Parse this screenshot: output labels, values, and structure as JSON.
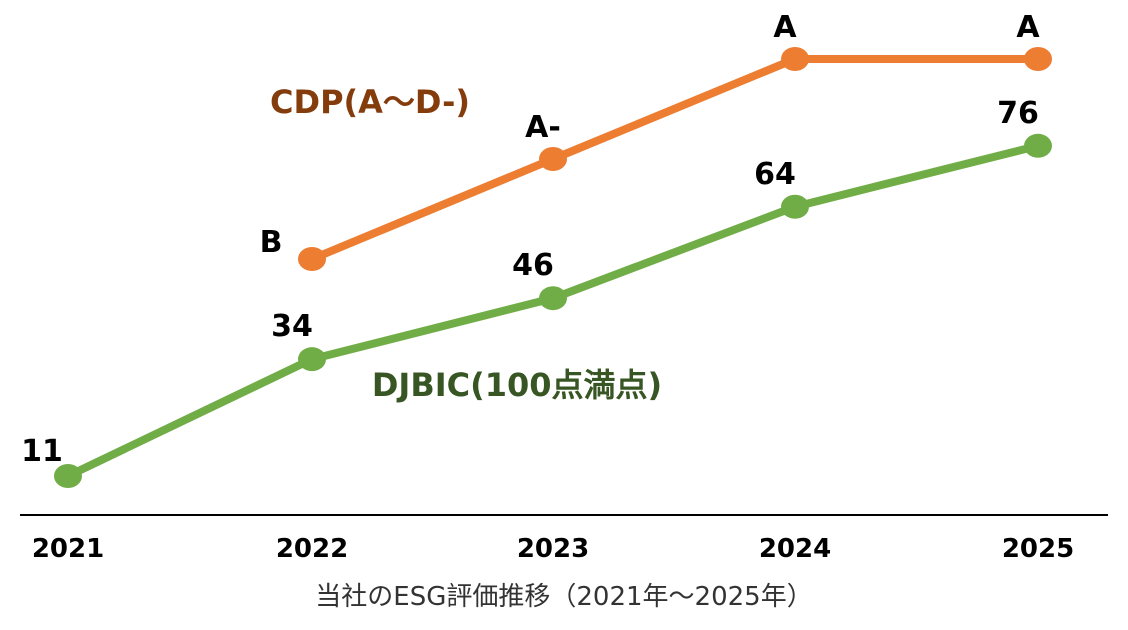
{
  "chart_data": {
    "type": "line",
    "caption": "当社のESG評価推移（2021年〜2025年）",
    "categories": [
      "2021",
      "2022",
      "2023",
      "2024",
      "2025"
    ],
    "series": [
      {
        "name": "CDP(A〜D-)",
        "color": "#ed7d31",
        "label_color": "#843c0c",
        "grade_scale": [
          "D-",
          "D",
          "C-",
          "C",
          "B-",
          "B",
          "A-",
          "A"
        ],
        "values": [
          null,
          "B",
          "A-",
          "A",
          "A"
        ],
        "data_labels": [
          "",
          "B",
          "A-",
          "A",
          "A"
        ]
      },
      {
        "name": "DJBIC(100点満点)",
        "color": "#70ad47",
        "label_color": "#375623",
        "values": [
          11,
          34,
          46,
          64,
          76
        ],
        "data_labels": [
          "11",
          "34",
          "46",
          "64",
          "76"
        ]
      }
    ]
  }
}
